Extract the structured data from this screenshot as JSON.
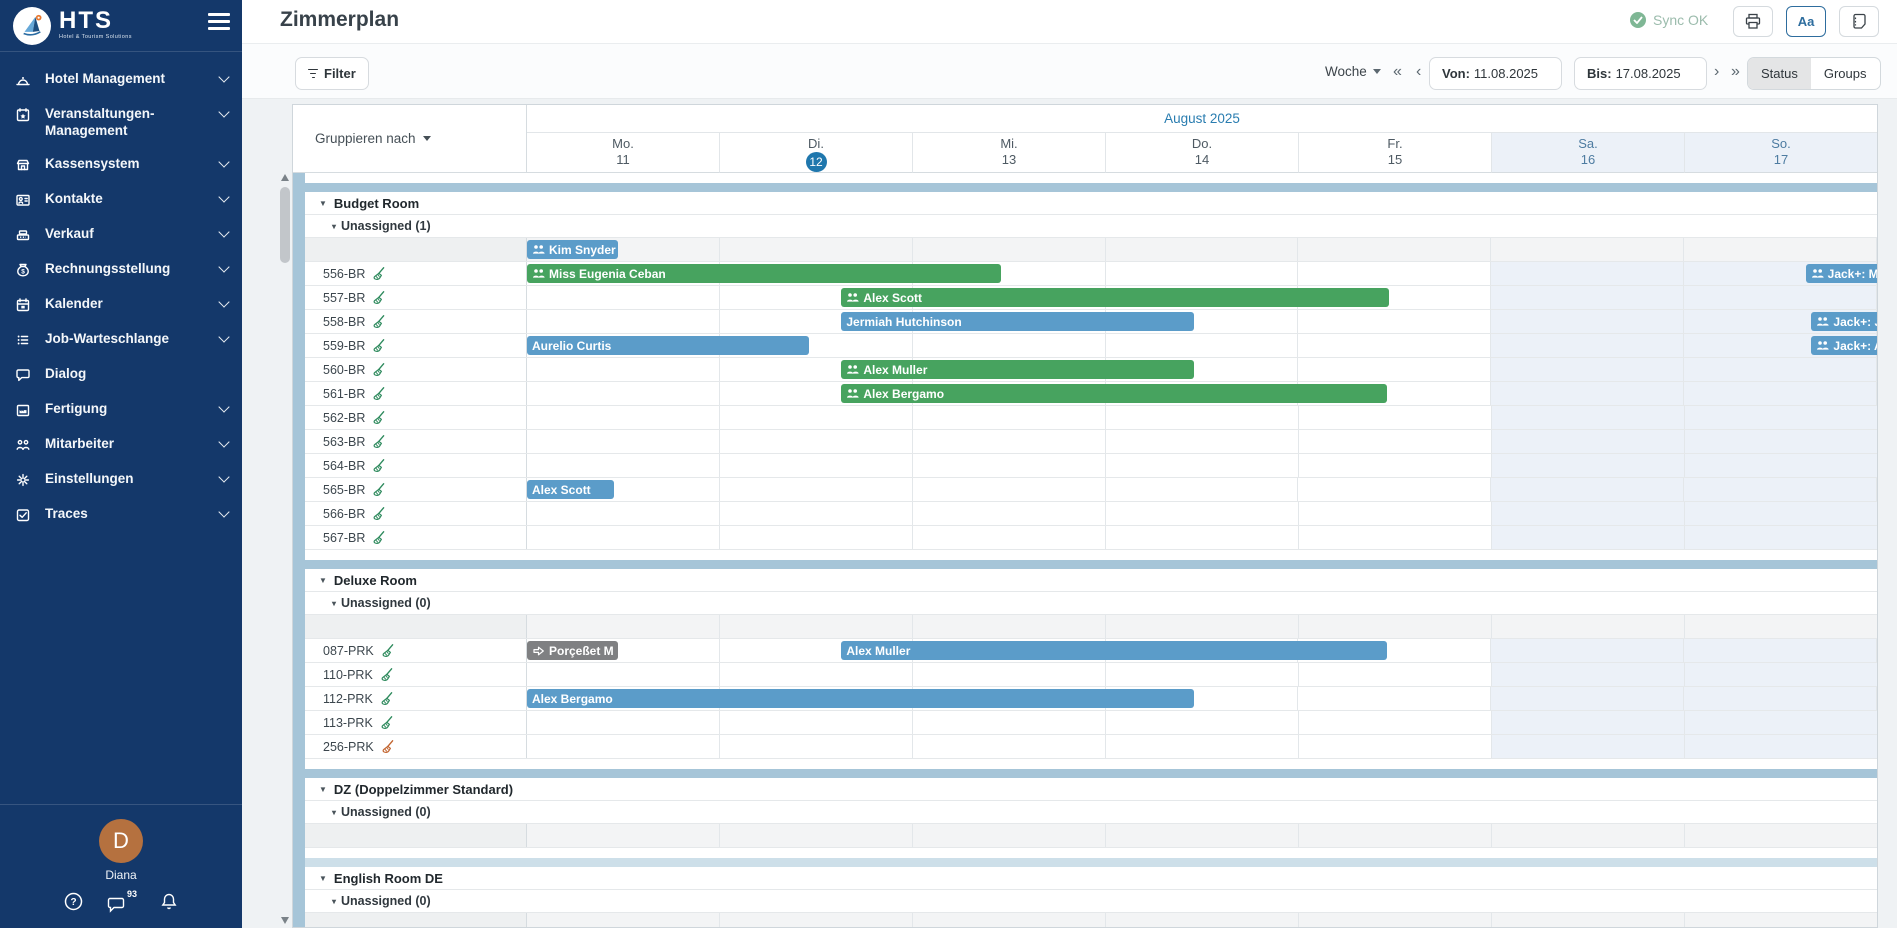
{
  "colors": {
    "sidebar_bg": "#14386a",
    "accent": "#1f77ad",
    "bar_blue": "#5b9cc9",
    "bar_green": "#47a35f",
    "bar_gray": "#7f8082",
    "band": "#a6c5d8",
    "band_light": "#cddfe9",
    "weekend_bg": "#ecf1f8",
    "avatar_bg": "#b5713f",
    "sync_green": "#7fb795",
    "sync_text": "#9cbcad"
  },
  "sidebar": {
    "brand": "HTS",
    "brand_subtitle": "Hotel & Tourism Solutions",
    "items": [
      {
        "label": "Hotel Management",
        "icon": "cloche-icon",
        "chevron": true
      },
      {
        "label": "Veranstaltungen-Management",
        "icon": "calendar-star-icon",
        "chevron": true
      },
      {
        "label": "Kassensystem",
        "icon": "storefront-icon",
        "chevron": true
      },
      {
        "label": "Kontakte",
        "icon": "contact-card-icon",
        "chevron": true
      },
      {
        "label": "Verkauf",
        "icon": "cash-register-icon",
        "chevron": true
      },
      {
        "label": "Rechnungsstellung",
        "icon": "money-bag-icon",
        "chevron": true
      },
      {
        "label": "Kalender",
        "icon": "calendar-icon",
        "chevron": true
      },
      {
        "label": "Job-Warteschlange",
        "icon": "list-icon",
        "chevron": true
      },
      {
        "label": "Dialog",
        "icon": "chat-icon",
        "chevron": false
      },
      {
        "label": "Fertigung",
        "icon": "factory-icon",
        "chevron": true
      },
      {
        "label": "Mitarbeiter",
        "icon": "people-icon",
        "chevron": true
      },
      {
        "label": "Einstellungen",
        "icon": "gear-icon",
        "chevron": true
      },
      {
        "label": "Traces",
        "icon": "checkbox-icon",
        "chevron": true
      }
    ],
    "user": {
      "initial": "D",
      "name": "Diana",
      "chat_badge": "93"
    }
  },
  "header": {
    "title": "Zimmerplan",
    "sync_label": "Sync OK",
    "font_button_label": "Aa"
  },
  "toolbar": {
    "filter_label": "Filter",
    "range_mode_label": "Woche",
    "nav_first": "«",
    "nav_prev": "‹",
    "nav_next": "›",
    "nav_last": "»",
    "from_label": "Von:",
    "from_value": "11.08.2025",
    "to_label": "Bis:",
    "to_value": "17.08.2025",
    "status_label": "Status",
    "groups_label": "Groups"
  },
  "grid": {
    "group_by_label": "Gruppieren nach",
    "month_label": "August 2025",
    "days": [
      {
        "name": "Mo.",
        "num": "11",
        "weekend": false,
        "today": false
      },
      {
        "name": "Di.",
        "num": "12",
        "weekend": false,
        "today": true
      },
      {
        "name": "Mi.",
        "num": "13",
        "weekend": false,
        "today": false
      },
      {
        "name": "Do.",
        "num": "14",
        "weekend": false,
        "today": false
      },
      {
        "name": "Fr.",
        "num": "15",
        "weekend": false,
        "today": false
      },
      {
        "name": "Sa.",
        "num": "16",
        "weekend": true,
        "today": false
      },
      {
        "name": "So.",
        "num": "17",
        "weekend": true,
        "today": false
      }
    ],
    "groups": [
      {
        "name": "Budget Room",
        "unassigned_label": "Unassigned (1)",
        "band_color": "#a6c5d8",
        "unassigned_bookings": [
          {
            "name": "Kim Snyder",
            "color": "blue",
            "icon": "people",
            "start": 0,
            "end": 0.47
          }
        ],
        "rooms": [
          {
            "label": "556-BR",
            "clean": "green",
            "bookings": [
              {
                "name": "Miss Eugenia Ceban",
                "color": "green",
                "icon": "people",
                "start": 0,
                "end": 2.46
              },
              {
                "name": "Jack+: M",
                "color": "blue",
                "icon": "people",
                "start": 6.63,
                "end": 7.1
              }
            ]
          },
          {
            "label": "557-BR",
            "clean": "green",
            "bookings": [
              {
                "name": "Alex Scott",
                "color": "green",
                "icon": "people",
                "start": 1.63,
                "end": 4.47
              }
            ]
          },
          {
            "label": "558-BR",
            "clean": "green",
            "bookings": [
              {
                "name": "Jermiah Hutchinson",
                "color": "blue",
                "icon": null,
                "start": 1.63,
                "end": 3.46
              },
              {
                "name": "Jack+: J",
                "color": "blue",
                "icon": "people",
                "start": 6.66,
                "end": 7.1
              }
            ]
          },
          {
            "label": "559-BR",
            "clean": "green",
            "bookings": [
              {
                "name": "Aurelio Curtis",
                "color": "blue",
                "icon": null,
                "start": 0,
                "end": 1.46
              },
              {
                "name": "Jack+: A",
                "color": "blue",
                "icon": "people",
                "start": 6.66,
                "end": 7.1
              }
            ]
          },
          {
            "label": "560-BR",
            "clean": "green",
            "bookings": [
              {
                "name": "Alex Muller",
                "color": "green",
                "icon": "people",
                "start": 1.63,
                "end": 3.46
              }
            ]
          },
          {
            "label": "561-BR",
            "clean": "green",
            "bookings": [
              {
                "name": "Alex Bergamo",
                "color": "green",
                "icon": "people",
                "start": 1.63,
                "end": 4.46
              }
            ]
          },
          {
            "label": "562-BR",
            "clean": "green",
            "bookings": []
          },
          {
            "label": "563-BR",
            "clean": "green",
            "bookings": []
          },
          {
            "label": "564-BR",
            "clean": "green",
            "bookings": []
          },
          {
            "label": "565-BR",
            "clean": "green",
            "bookings": [
              {
                "name": "Alex Scott",
                "color": "blue",
                "icon": null,
                "start": 0,
                "end": 0.45
              }
            ]
          },
          {
            "label": "566-BR",
            "clean": "green",
            "bookings": []
          },
          {
            "label": "567-BR",
            "clean": "green",
            "bookings": []
          }
        ]
      },
      {
        "name": "Deluxe Room",
        "unassigned_label": "Unassigned (0)",
        "band_color": "#a6c5d8",
        "unassigned_bookings": [],
        "rooms": [
          {
            "label": "087-PRK",
            "clean": "green",
            "bookings": [
              {
                "name": "Porçeßet M",
                "color": "gray",
                "icon": "arrow",
                "start": 0,
                "end": 0.47
              },
              {
                "name": "Alex Muller",
                "color": "blue",
                "icon": null,
                "start": 1.63,
                "end": 4.46
              }
            ]
          },
          {
            "label": "110-PRK",
            "clean": "green",
            "bookings": []
          },
          {
            "label": "112-PRK",
            "clean": "green",
            "bookings": [
              {
                "name": "Alex Bergamo",
                "color": "blue",
                "icon": null,
                "start": 0,
                "end": 3.46
              }
            ]
          },
          {
            "label": "113-PRK",
            "clean": "green",
            "bookings": []
          },
          {
            "label": "256-PRK",
            "clean": "orange",
            "bookings": []
          }
        ]
      },
      {
        "name": "DZ (Doppelzimmer Standard)",
        "unassigned_label": "Unassigned (0)",
        "band_color": "#a6c5d8",
        "unassigned_bookings": [],
        "rooms": []
      },
      {
        "name": "English Room DE",
        "unassigned_label": "Unassigned (0)",
        "band_color": "#cddfe9",
        "unassigned_bookings": [],
        "rooms": []
      }
    ]
  }
}
